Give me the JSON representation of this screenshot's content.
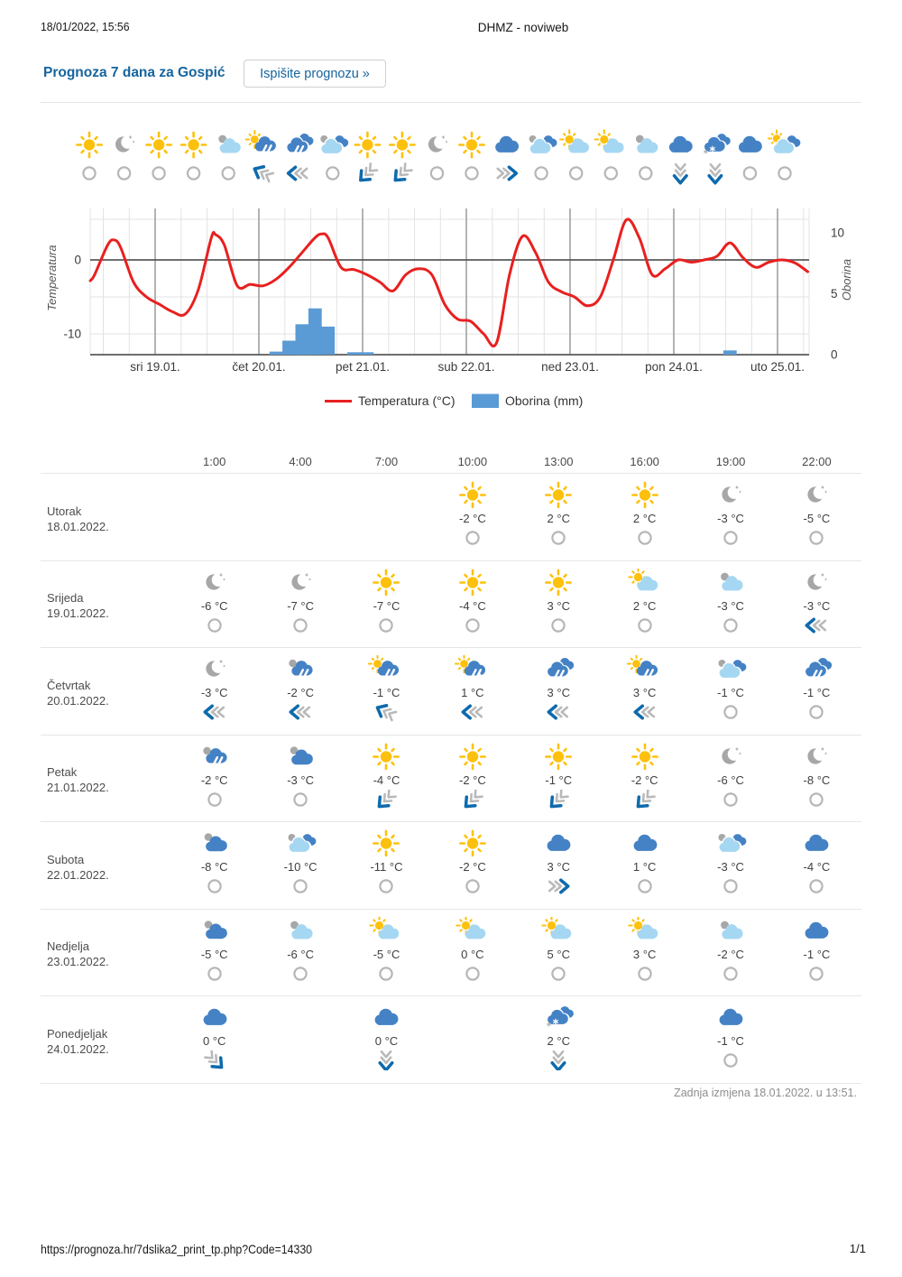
{
  "print_header": {
    "datetime": "18/01/2022, 15:56",
    "title": "DHMZ - noviweb"
  },
  "header": {
    "title": "Prognoza 7 dana za Gospić",
    "print_button_label": "Ispišite prognozu »"
  },
  "chart_data": {
    "type": "line+bar",
    "temperature_axis": {
      "label": "Temperatura",
      "ticks": [
        0,
        -10
      ]
    },
    "precipitation_axis": {
      "label": "Oborina",
      "ticks": [
        0,
        5,
        10
      ]
    },
    "x_tick_labels": [
      "sri 19.01.",
      "čet 20.01.",
      "pet 21.01.",
      "sub 22.01.",
      "ned 23.01.",
      "pon 24.01.",
      "uto 25.01."
    ],
    "legend": [
      {
        "label": "Temperatura (°C)",
        "color": "#e8201f",
        "marker": "line"
      },
      {
        "label": "Oborina (mm)",
        "color": "#5b9bd5",
        "marker": "box"
      }
    ],
    "temperature_c": {
      "series_label": "Temperatura (°C)",
      "points": [
        [
          0,
          9,
          -2.8
        ],
        [
          0,
          10,
          -2
        ],
        [
          0,
          13,
          2
        ],
        [
          0,
          14.5,
          2.7
        ],
        [
          0,
          16,
          1.7
        ],
        [
          0,
          19,
          -3
        ],
        [
          0,
          22,
          -5
        ],
        [
          1,
          1,
          -6
        ],
        [
          1,
          4,
          -7
        ],
        [
          1,
          7,
          -7.3
        ],
        [
          1,
          10,
          -4
        ],
        [
          1,
          13,
          3
        ],
        [
          1,
          14,
          3.4
        ],
        [
          1,
          16,
          2
        ],
        [
          1,
          19,
          -3.5
        ],
        [
          1,
          22,
          -3.3
        ],
        [
          2,
          1,
          -3.5
        ],
        [
          2,
          4,
          -2.6
        ],
        [
          2,
          7,
          -1
        ],
        [
          2,
          10,
          1
        ],
        [
          2,
          13,
          3
        ],
        [
          2,
          14.5,
          3.5
        ],
        [
          2,
          16,
          3
        ],
        [
          2,
          19,
          -1
        ],
        [
          2,
          22,
          -1.3
        ],
        [
          3,
          1,
          -2
        ],
        [
          3,
          4,
          -3
        ],
        [
          3,
          7,
          -4.2
        ],
        [
          3,
          10,
          -2
        ],
        [
          3,
          13,
          -1.2
        ],
        [
          3,
          16,
          -2
        ],
        [
          3,
          19,
          -6
        ],
        [
          3,
          22,
          -8
        ],
        [
          4,
          1,
          -8.3
        ],
        [
          4,
          4,
          -10
        ],
        [
          4,
          7,
          -11.2
        ],
        [
          4,
          10,
          -2
        ],
        [
          4,
          13,
          3.2
        ],
        [
          4,
          16,
          1
        ],
        [
          4,
          19,
          -3
        ],
        [
          4,
          22,
          -4.3
        ],
        [
          5,
          1,
          -5
        ],
        [
          5,
          4,
          -6.2
        ],
        [
          5,
          7,
          -5
        ],
        [
          5,
          10,
          0
        ],
        [
          5,
          13,
          5.4
        ],
        [
          5,
          16,
          3
        ],
        [
          5,
          19,
          -2
        ],
        [
          5,
          22,
          -1.2
        ],
        [
          6,
          1,
          0
        ],
        [
          6,
          4,
          -0.3
        ],
        [
          6,
          7,
          0
        ],
        [
          6,
          10,
          0.5
        ],
        [
          6,
          13,
          2.3
        ],
        [
          6,
          16,
          0.3
        ],
        [
          6,
          19,
          -1
        ],
        [
          6,
          22,
          -0.3
        ],
        [
          7,
          1,
          0
        ],
        [
          7,
          4,
          -0.4
        ],
        [
          7,
          7,
          -1.6
        ]
      ]
    },
    "precipitation_mm": {
      "series_label": "Oborina (mm)",
      "bars": [
        [
          2,
          4,
          0.25
        ],
        [
          2,
          7,
          1.15
        ],
        [
          2,
          10,
          2.5
        ],
        [
          2,
          13,
          3.8
        ],
        [
          2,
          16,
          2.3
        ],
        [
          2,
          22,
          0.2
        ],
        [
          3,
          1,
          0.2
        ],
        [
          6,
          13,
          0.35
        ]
      ]
    },
    "symbol_row": {
      "weather": [
        "sun",
        "moon",
        "sun",
        "sun",
        "gray-cloud",
        "sun-rain",
        "rain-double",
        "gray-cloud-dark",
        "sun",
        "sun",
        "moon",
        "sun",
        "cloud",
        "gray-cloud-dark",
        "sun-cloud",
        "sun-cloud",
        "gray-cloud",
        "cloud",
        "snow",
        "cloud",
        "sun-cloud-dark"
      ],
      "wind": [
        "calm",
        "calm",
        "calm",
        "calm",
        "calm",
        "WNW",
        "W",
        "calm",
        "SW",
        "SW",
        "calm",
        "calm",
        "E",
        "calm",
        "calm",
        "calm",
        "calm",
        "S",
        "S",
        "calm",
        "calm"
      ]
    }
  },
  "table": {
    "times": [
      "1:00",
      "4:00",
      "7:00",
      "10:00",
      "13:00",
      "16:00",
      "19:00",
      "22:00"
    ],
    "rows": [
      {
        "day": "Utorak",
        "date": "18.01.2022.",
        "cells": [
          null,
          null,
          null,
          {
            "icon": "sun",
            "temp": "-2 °C",
            "wind": "calm"
          },
          {
            "icon": "sun",
            "temp": "2 °C",
            "wind": "calm"
          },
          {
            "icon": "sun",
            "temp": "2 °C",
            "wind": "calm"
          },
          {
            "icon": "moon",
            "temp": "-3 °C",
            "wind": "calm"
          },
          {
            "icon": "moon",
            "temp": "-5 °C",
            "wind": "calm"
          }
        ]
      },
      {
        "day": "Srijeda",
        "date": "19.01.2022.",
        "cells": [
          {
            "icon": "moon",
            "temp": "-6 °C",
            "wind": "calm"
          },
          {
            "icon": "moon",
            "temp": "-7 °C",
            "wind": "calm"
          },
          {
            "icon": "sun",
            "temp": "-7 °C",
            "wind": "calm"
          },
          {
            "icon": "sun",
            "temp": "-4 °C",
            "wind": "calm"
          },
          {
            "icon": "sun",
            "temp": "3 °C",
            "wind": "calm"
          },
          {
            "icon": "sun-cloud",
            "temp": "2 °C",
            "wind": "calm"
          },
          {
            "icon": "gray-cloud",
            "temp": "-3 °C",
            "wind": "calm"
          },
          {
            "icon": "moon",
            "temp": "-3 °C",
            "wind": "W"
          }
        ]
      },
      {
        "day": "Četvrtak",
        "date": "20.01.2022.",
        "cells": [
          {
            "icon": "moon",
            "temp": "-3 °C",
            "wind": "W"
          },
          {
            "icon": "gray-rain",
            "temp": "-2 °C",
            "wind": "W"
          },
          {
            "icon": "sun-rain",
            "temp": "-1 °C",
            "wind": "WNW"
          },
          {
            "icon": "sun-rain-dot",
            "temp": "1 °C",
            "wind": "W"
          },
          {
            "icon": "rain-double",
            "temp": "3 °C",
            "wind": "W"
          },
          {
            "icon": "sun-rain",
            "temp": "3 °C",
            "wind": "W"
          },
          {
            "icon": "gray-cloud-dark",
            "temp": "-1 °C",
            "wind": "calm"
          },
          {
            "icon": "rain-double",
            "temp": "-1 °C",
            "wind": "calm"
          }
        ]
      },
      {
        "day": "Petak",
        "date": "21.01.2022.",
        "cells": [
          {
            "icon": "gray-rain",
            "temp": "-2 °C",
            "wind": "calm"
          },
          {
            "icon": "gray-dark-cloud",
            "temp": "-3 °C",
            "wind": "calm"
          },
          {
            "icon": "sun",
            "temp": "-4 °C",
            "wind": "SW"
          },
          {
            "icon": "sun",
            "temp": "-2 °C",
            "wind": "SW"
          },
          {
            "icon": "sun",
            "temp": "-1 °C",
            "wind": "SW"
          },
          {
            "icon": "sun",
            "temp": "-2 °C",
            "wind": "SW"
          },
          {
            "icon": "moon",
            "temp": "-6 °C",
            "wind": "calm"
          },
          {
            "icon": "moon",
            "temp": "-8 °C",
            "wind": "calm"
          }
        ]
      },
      {
        "day": "Subota",
        "date": "22.01.2022.",
        "cells": [
          {
            "icon": "gray-dark-cloud",
            "temp": "-8 °C",
            "wind": "calm"
          },
          {
            "icon": "gray-cloud-dark",
            "temp": "-10 °C",
            "wind": "calm"
          },
          {
            "icon": "sun",
            "temp": "-11 °C",
            "wind": "calm"
          },
          {
            "icon": "sun",
            "temp": "-2 °C",
            "wind": "calm"
          },
          {
            "icon": "cloud",
            "temp": "3 °C",
            "wind": "E"
          },
          {
            "icon": "cloud",
            "temp": "1 °C",
            "wind": "calm"
          },
          {
            "icon": "gray-cloud-dark",
            "temp": "-3 °C",
            "wind": "calm"
          },
          {
            "icon": "cloud",
            "temp": "-4 °C",
            "wind": "calm"
          }
        ]
      },
      {
        "day": "Nedjelja",
        "date": "23.01.2022.",
        "cells": [
          {
            "icon": "gray-dark-cloud",
            "temp": "-5 °C",
            "wind": "calm"
          },
          {
            "icon": "gray-cloud",
            "temp": "-6 °C",
            "wind": "calm"
          },
          {
            "icon": "sun-cloud",
            "temp": "-5 °C",
            "wind": "calm"
          },
          {
            "icon": "sun-cloud",
            "temp": "0 °C",
            "wind": "calm"
          },
          {
            "icon": "sun-cloud",
            "temp": "5 °C",
            "wind": "calm"
          },
          {
            "icon": "sun-cloud",
            "temp": "3 °C",
            "wind": "calm"
          },
          {
            "icon": "gray-cloud",
            "temp": "-2 °C",
            "wind": "calm"
          },
          {
            "icon": "cloud",
            "temp": "-1 °C",
            "wind": "calm"
          }
        ]
      },
      {
        "day": "Ponedjeljak",
        "date": "24.01.2022.",
        "cells": [
          {
            "icon": "cloud",
            "temp": "0 °C",
            "wind": "SE"
          },
          null,
          {
            "icon": "cloud",
            "temp": "0 °C",
            "wind": "S"
          },
          null,
          {
            "icon": "snow",
            "temp": "2 °C",
            "wind": "S"
          },
          null,
          {
            "icon": "cloud",
            "temp": "-1 °C",
            "wind": "calm"
          },
          null
        ]
      }
    ]
  },
  "footnote": {
    "last_updated": "Zadnja izmjena 18.01.2022. u 13:51."
  },
  "print_footer": {
    "url": "https://prognoza.hr/7dslika2_print_tp.php?Code=14330",
    "page": "1/1"
  },
  "colors": {
    "accent_blue": "#16649e",
    "sun": "#fdc10d",
    "cloud_light": "#a5d7f2",
    "cloud_dark": "#4482c5",
    "gray": "#a7a7a7",
    "wind_blue": "#0e6aad",
    "wind_gray": "#b9b9b9",
    "temp_line": "#e8201f",
    "precip_bar": "#5b9bd5",
    "grid_light": "#e3e3e3",
    "grid_day": "#a0a0a0",
    "grid_dark": "#5a5a5a"
  }
}
